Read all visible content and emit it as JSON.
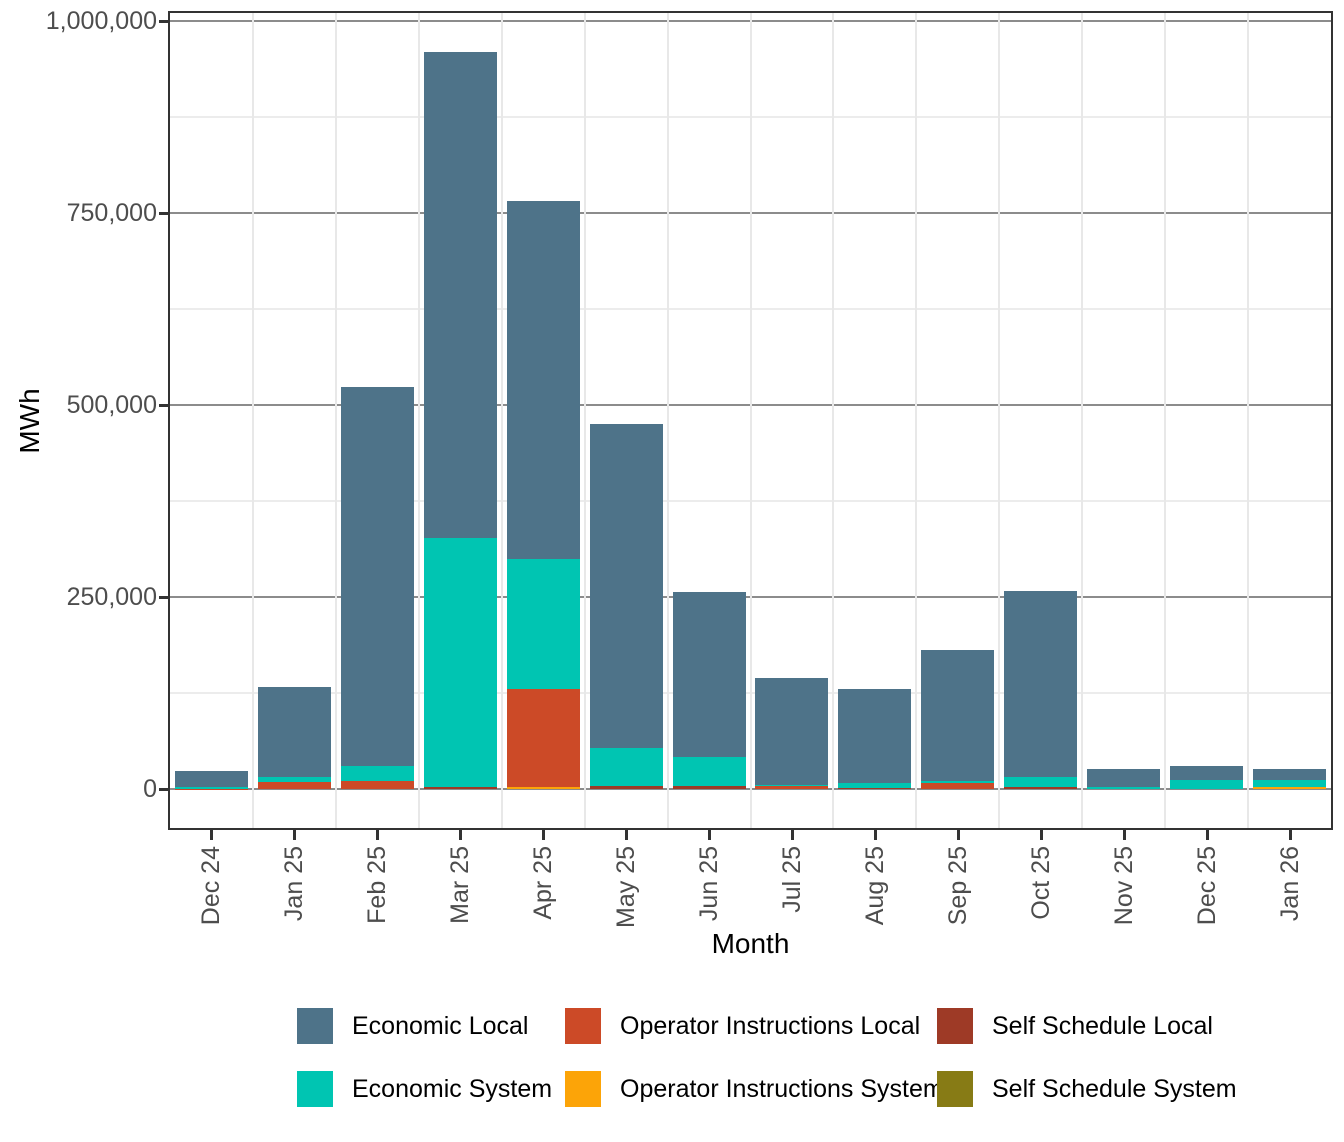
{
  "chart_data": {
    "type": "bar",
    "stacked": true,
    "xlabel": "Month",
    "ylabel": "MWh",
    "ylim": [
      0,
      1000000
    ],
    "grid": true,
    "legend_position": "bottom",
    "categories": [
      "Dec 24",
      "Jan 25",
      "Feb 25",
      "Mar 25",
      "Apr 25",
      "May 25",
      "Jun 25",
      "Jul 25",
      "Aug 25",
      "Sep 25",
      "Oct 25",
      "Nov 25",
      "Dec 25",
      "Jan 26"
    ],
    "series": [
      {
        "name": "Economic Local",
        "color": "#4E7389",
        "values": [
          21000,
          118000,
          493000,
          633000,
          466000,
          421000,
          214000,
          138500,
          122000,
          171000,
          243000,
          23000,
          18500,
          14000
        ]
      },
      {
        "name": "Economic System",
        "color": "#00C5B2",
        "values": [
          2000,
          6000,
          19000,
          324000,
          170000,
          50000,
          38000,
          2000,
          6500,
          2500,
          12000,
          3000,
          11500,
          9000
        ]
      },
      {
        "name": "Operator Instructions Local",
        "color": "#CC4A27",
        "values": [
          500,
          9000,
          11000,
          0,
          127500,
          0,
          0,
          3500,
          0,
          7500,
          0,
          0,
          0,
          0
        ]
      },
      {
        "name": "Operator Instructions System",
        "color": "#FCA408",
        "values": [
          0,
          0,
          0,
          0,
          2500,
          0,
          0,
          0,
          0,
          0,
          0,
          0,
          0,
          3000
        ]
      },
      {
        "name": "Self Schedule Local",
        "color": "#9E3A26",
        "values": [
          0,
          0,
          0,
          3000,
          0,
          4000,
          4000,
          0,
          1500,
          0,
          3000,
          0,
          0,
          0
        ]
      },
      {
        "name": "Self Schedule System",
        "color": "#877B15",
        "values": [
          0,
          0,
          0,
          0,
          0,
          0,
          0,
          0,
          0,
          0,
          0,
          0,
          0,
          0
        ]
      }
    ],
    "stack_order_bottom_to_top": [
      "Self Schedule System",
      "Self Schedule Local",
      "Operator Instructions System",
      "Operator Instructions Local",
      "Economic System",
      "Economic Local"
    ],
    "y_ticks": {
      "values": [
        0,
        250000,
        500000,
        750000,
        1000000
      ],
      "labels": [
        "0",
        "250,000",
        "500,000",
        "750,000",
        "1,000,000"
      ]
    },
    "y_minor_ticks": [
      125000,
      375000,
      625000,
      875000
    ]
  }
}
